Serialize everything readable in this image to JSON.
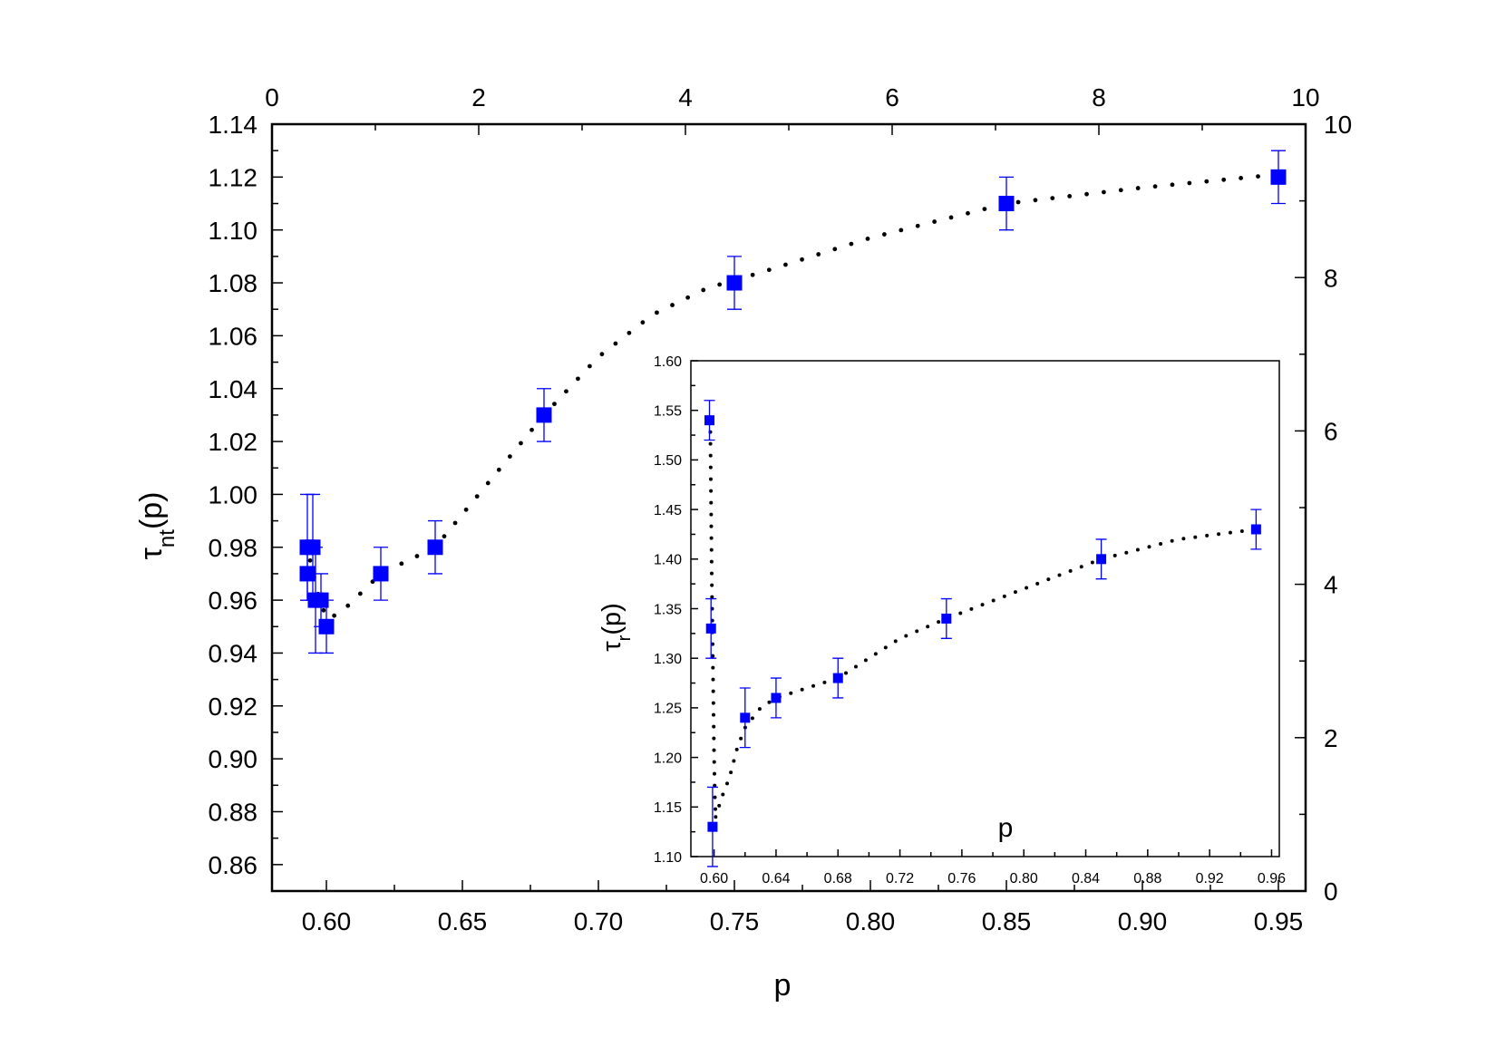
{
  "chart_data": [
    {
      "type": "scatter",
      "role": "main",
      "xlabel": "p",
      "ylabel_base": "τ",
      "ylabel_sub": "nt",
      "ylabel_tail": "(p)",
      "xlim": [
        0.58,
        0.96
      ],
      "ylim": [
        0.85,
        1.14
      ],
      "xticks": [
        0.6,
        0.65,
        0.7,
        0.75,
        0.8,
        0.85,
        0.9,
        0.95
      ],
      "xtick_labels": [
        "0.60",
        "0.65",
        "0.70",
        "0.75",
        "0.80",
        "0.85",
        "0.90",
        "0.95"
      ],
      "yticks": [
        0.86,
        0.88,
        0.9,
        0.92,
        0.94,
        0.96,
        0.98,
        1.0,
        1.02,
        1.04,
        1.06,
        1.08,
        1.1,
        1.12,
        1.14
      ],
      "ytick_labels": [
        "0.86",
        "0.88",
        "0.90",
        "0.92",
        "0.94",
        "0.96",
        "0.98",
        "1.00",
        "1.02",
        "1.04",
        "1.06",
        "1.08",
        "1.10",
        "1.12",
        "1.14"
      ],
      "top_axis": {
        "lim": [
          0,
          10
        ],
        "ticks": [
          0,
          2,
          4,
          6,
          8,
          10
        ],
        "labels": [
          "0",
          "2",
          "4",
          "6",
          "8",
          "10"
        ]
      },
      "right_axis": {
        "lim": [
          0,
          10
        ],
        "ticks": [
          0,
          2,
          4,
          6,
          8,
          10
        ],
        "labels": [
          "0",
          "2",
          "4",
          "6",
          "8",
          "10"
        ]
      },
      "series": [
        {
          "marker": "square",
          "color": "#0000ff",
          "x": [
            0.593,
            0.593,
            0.595,
            0.596,
            0.598,
            0.6,
            0.62,
            0.64,
            0.68,
            0.75,
            0.85,
            0.95
          ],
          "y": [
            0.97,
            0.98,
            0.98,
            0.96,
            0.96,
            0.95,
            0.97,
            0.98,
            1.03,
            1.08,
            1.11,
            1.12
          ],
          "yerr": [
            0.01,
            0.02,
            0.02,
            0.02,
            0.01,
            0.01,
            0.01,
            0.01,
            0.01,
            0.01,
            0.01,
            0.01
          ]
        }
      ],
      "fit_curve": {
        "style": "dotted",
        "color": "#000000",
        "x": [
          0.594,
          0.597,
          0.6,
          0.605,
          0.61,
          0.62,
          0.64,
          0.66,
          0.68,
          0.7,
          0.72,
          0.74,
          0.76,
          0.8,
          0.85,
          0.9,
          0.95
        ],
        "y": [
          0.975,
          0.962,
          0.953,
          0.955,
          0.96,
          0.97,
          0.98,
          1.005,
          1.03,
          1.052,
          1.068,
          1.078,
          1.084,
          1.097,
          1.11,
          1.116,
          1.121
        ]
      }
    },
    {
      "type": "scatter",
      "role": "inset",
      "xlabel": "p",
      "ylabel_base": "τ",
      "ylabel_sub": "r",
      "ylabel_tail": "(p)",
      "xlim": [
        0.585,
        0.965
      ],
      "ylim": [
        1.1,
        1.6
      ],
      "xticks": [
        0.6,
        0.64,
        0.68,
        0.72,
        0.76,
        0.8,
        0.84,
        0.88,
        0.92,
        0.96
      ],
      "xtick_labels": [
        "0.60",
        "0.64",
        "0.68",
        "0.72",
        "0.76",
        "0.80",
        "0.84",
        "0.88",
        "0.92",
        "0.96"
      ],
      "yticks": [
        1.1,
        1.15,
        1.2,
        1.25,
        1.3,
        1.35,
        1.4,
        1.45,
        1.5,
        1.55,
        1.6
      ],
      "ytick_labels": [
        "1.10",
        "1.15",
        "1.20",
        "1.25",
        "1.30",
        "1.35",
        "1.40",
        "1.45",
        "1.50",
        "1.55",
        "1.60"
      ],
      "series": [
        {
          "marker": "square",
          "color": "#0000ff",
          "x": [
            0.597,
            0.598,
            0.599,
            0.62,
            0.64,
            0.68,
            0.75,
            0.85,
            0.95
          ],
          "y": [
            1.54,
            1.33,
            1.13,
            1.24,
            1.26,
            1.28,
            1.34,
            1.4,
            1.43
          ],
          "yerr": [
            0.02,
            0.03,
            0.04,
            0.03,
            0.02,
            0.02,
            0.02,
            0.02,
            0.02
          ]
        }
      ],
      "fit_curves": [
        {
          "style": "dotted",
          "color": "#000000",
          "x": [
            0.5975,
            0.598,
            0.5985,
            0.599,
            0.5995,
            0.6,
            0.6005,
            0.601
          ],
          "y": [
            1.54,
            1.46,
            1.38,
            1.32,
            1.26,
            1.2,
            1.16,
            1.14
          ]
        },
        {
          "style": "dotted",
          "color": "#000000",
          "x": [
            0.601,
            0.605,
            0.61,
            0.615,
            0.62,
            0.63,
            0.64,
            0.66,
            0.68,
            0.7,
            0.72,
            0.75,
            0.8,
            0.85,
            0.9,
            0.95
          ],
          "y": [
            1.14,
            1.16,
            1.18,
            1.21,
            1.23,
            1.25,
            1.26,
            1.27,
            1.28,
            1.3,
            1.32,
            1.34,
            1.37,
            1.4,
            1.42,
            1.43
          ]
        }
      ]
    }
  ]
}
